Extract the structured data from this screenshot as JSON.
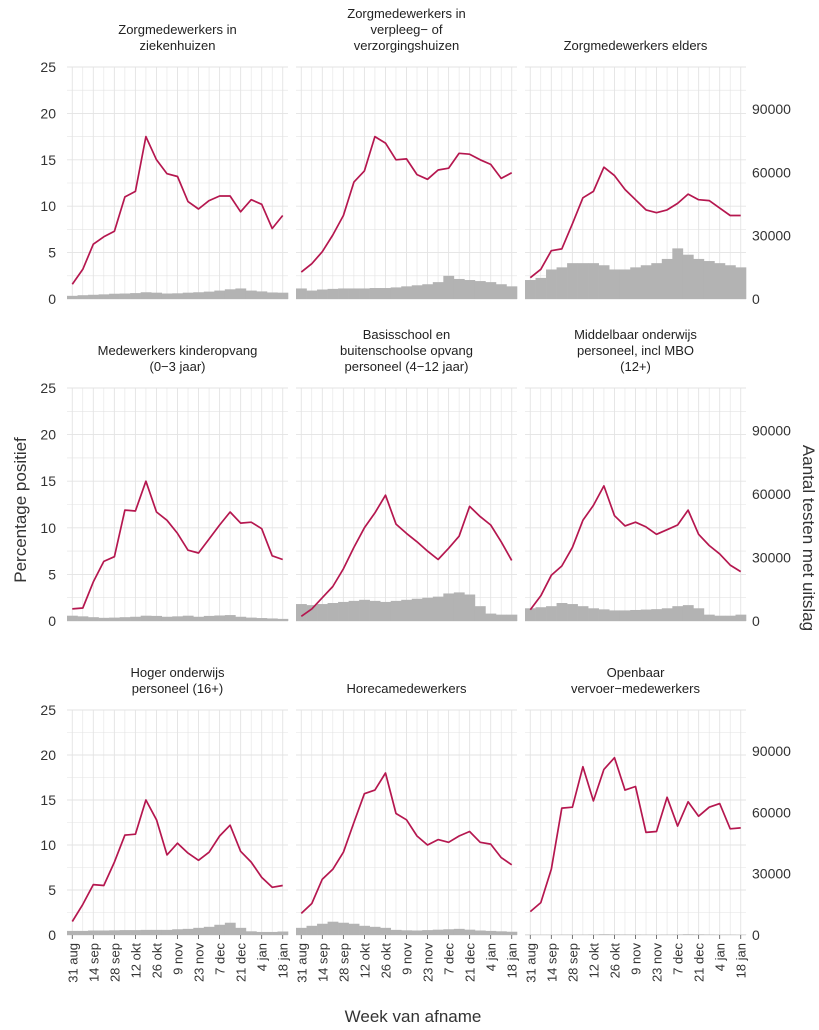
{
  "ylabel_left": "Percentage positief",
  "ylabel_right": "Aantal testen met uitslag",
  "xlabel": "Week van afname",
  "x_tick_labels": [
    "31 aug",
    "14 sep",
    "28 sep",
    "12 okt",
    "26 okt",
    "9 nov",
    "23 nov",
    "7 dec",
    "21 dec",
    "4 jan",
    "18 jan"
  ],
  "y_left_ticks": [
    0,
    5,
    10,
    15,
    20,
    25
  ],
  "y_right_ticks": [
    0,
    30000,
    60000,
    90000
  ],
  "colors": {
    "line": "#b5174f",
    "bar": "#b3b3b3",
    "grid": "#e3e3e3",
    "text": "#333333"
  },
  "chart_data": {
    "type": "line",
    "layout": "3x3 facets, line = percentage positief (left axis), bars = aantal testen met uitslag (right axis)",
    "weeks": [
      "31 aug",
      "7 sep",
      "14 sep",
      "21 sep",
      "28 sep",
      "5 okt",
      "12 okt",
      "19 okt",
      "26 okt",
      "2 nov",
      "9 nov",
      "16 nov",
      "23 nov",
      "30 nov",
      "7 dec",
      "14 dec",
      "21 dec",
      "28 dec",
      "4 jan",
      "11 jan",
      "18 jan"
    ],
    "ylim_left": [
      0,
      25
    ],
    "ylim_right": [
      0,
      110000
    ],
    "panels": [
      {
        "title_lines": [
          "Zorgmedewerkers in",
          "ziekenhuizen"
        ],
        "pct": [
          1.6,
          3.2,
          5.9,
          6.7,
          7.3,
          11.0,
          11.6,
          17.5,
          15.0,
          13.5,
          13.2,
          10.5,
          9.7,
          10.6,
          11.1,
          11.1,
          9.4,
          10.7,
          10.2,
          7.6,
          9.0
        ],
        "tests": [
          1500,
          1800,
          2000,
          2200,
          2500,
          2600,
          2800,
          3200,
          3000,
          2600,
          2700,
          3000,
          3200,
          3500,
          4000,
          4600,
          5000,
          4000,
          3600,
          3100,
          3000
        ]
      },
      {
        "title_lines": [
          "Zorgmedewerkers in",
          "verpleeg− of",
          "verzorgingshuizen"
        ],
        "pct": [
          2.9,
          3.8,
          5.1,
          6.9,
          9.0,
          12.6,
          13.8,
          17.5,
          16.8,
          15.0,
          15.1,
          13.4,
          12.9,
          13.9,
          14.1,
          15.7,
          15.6,
          15.0,
          14.5,
          13.0,
          13.6
        ],
        "tests": [
          5000,
          4000,
          4500,
          4800,
          5000,
          5000,
          5000,
          5200,
          5200,
          5500,
          6000,
          6500,
          7000,
          8000,
          11000,
          9500,
          9000,
          8500,
          8000,
          7000,
          6000
        ]
      },
      {
        "title_lines": [
          "Zorgmedewerkers elders"
        ],
        "pct": [
          2.3,
          3.2,
          5.2,
          5.4,
          8.1,
          10.9,
          11.6,
          14.2,
          13.3,
          11.8,
          10.7,
          9.6,
          9.3,
          9.6,
          10.3,
          11.3,
          10.7,
          10.6,
          9.8,
          9.0,
          9.0
        ],
        "tests": [
          9000,
          10000,
          14000,
          15000,
          17000,
          17000,
          17000,
          16000,
          14000,
          14000,
          15000,
          16000,
          17000,
          19000,
          24000,
          21000,
          19000,
          18000,
          17000,
          16000,
          15000
        ]
      },
      {
        "title_lines": [
          "Medewerkers kinderopvang",
          "(0−3 jaar)"
        ],
        "pct": [
          1.3,
          1.4,
          4.2,
          6.4,
          6.9,
          11.9,
          11.8,
          15.0,
          11.7,
          10.8,
          9.4,
          7.6,
          7.3,
          8.8,
          10.3,
          11.7,
          10.5,
          10.6,
          9.9,
          7.0,
          6.6
        ],
        "tests": [
          2500,
          2200,
          1800,
          1500,
          1600,
          1800,
          2000,
          2500,
          2400,
          2000,
          2200,
          2500,
          2000,
          2400,
          2600,
          2800,
          2000,
          1600,
          1400,
          1200,
          1000
        ]
      },
      {
        "title_lines": [
          "Basisschool en",
          "buitenschoolse opvang",
          "personeel (4−12 jaar)"
        ],
        "pct": [
          0.5,
          1.3,
          2.5,
          3.7,
          5.6,
          7.9,
          10.0,
          11.6,
          13.5,
          10.4,
          9.4,
          8.5,
          7.5,
          6.6,
          7.8,
          9.1,
          12.3,
          11.2,
          10.3,
          8.5,
          6.5
        ],
        "tests": [
          8000,
          7500,
          8000,
          8500,
          9000,
          9500,
          10000,
          9500,
          9000,
          9500,
          10000,
          10500,
          11000,
          11500,
          13000,
          13500,
          12500,
          7000,
          3500,
          3000,
          3000
        ]
      },
      {
        "title_lines": [
          "Middelbaar onderwijs",
          "personeel, incl MBO",
          "(12+)"
        ],
        "pct": [
          1.2,
          2.7,
          4.9,
          5.9,
          7.9,
          10.8,
          12.4,
          14.5,
          11.3,
          10.2,
          10.6,
          10.1,
          9.3,
          9.8,
          10.3,
          11.9,
          9.3,
          8.1,
          7.2,
          6.0,
          5.3
        ],
        "tests": [
          6000,
          6500,
          7000,
          8500,
          8000,
          7000,
          6000,
          5500,
          5000,
          5000,
          5200,
          5400,
          5600,
          6000,
          7000,
          7500,
          6000,
          3000,
          2500,
          2500,
          3000
        ]
      },
      {
        "title_lines": [
          "Hoger onderwijs",
          "personeel (16+)"
        ],
        "pct": [
          1.5,
          3.4,
          5.6,
          5.5,
          8.1,
          11.1,
          11.2,
          15.0,
          12.8,
          8.9,
          10.2,
          9.1,
          8.3,
          9.2,
          11.0,
          12.2,
          9.3,
          8.1,
          6.4,
          5.3,
          5.5
        ],
        "tests": [
          2000,
          2000,
          2200,
          2200,
          2300,
          2400,
          2400,
          2500,
          2500,
          2500,
          2800,
          3000,
          3500,
          4000,
          5000,
          6000,
          3500,
          1800,
          1500,
          1500,
          1700
        ]
      },
      {
        "title_lines": [
          "Horecamedewerkers"
        ],
        "pct": [
          2.4,
          3.5,
          6.2,
          7.3,
          9.2,
          12.5,
          15.7,
          16.1,
          18.0,
          13.5,
          12.8,
          11.0,
          10.0,
          10.6,
          10.3,
          11.0,
          11.5,
          10.3,
          10.1,
          8.6,
          7.8
        ],
        "tests": [
          3500,
          4500,
          5500,
          6500,
          6000,
          5500,
          4500,
          4000,
          3500,
          2500,
          2300,
          2200,
          2400,
          2600,
          2800,
          3000,
          2600,
          2200,
          2000,
          1800,
          1600
        ]
      },
      {
        "title_lines": [
          "Openbaar",
          "vervoer−medewerkers"
        ],
        "pct": [
          2.6,
          3.6,
          7.3,
          14.1,
          14.2,
          18.7,
          14.9,
          18.4,
          19.7,
          16.1,
          16.5,
          11.4,
          11.5,
          15.3,
          12.1,
          14.8,
          13.2,
          14.2,
          14.6,
          11.8,
          11.9
        ],
        "tests": [
          150,
          150,
          150,
          200,
          200,
          200,
          250,
          350,
          300,
          250,
          250,
          200,
          200,
          200,
          250,
          350,
          300,
          250,
          200,
          200,
          150
        ]
      }
    ]
  }
}
